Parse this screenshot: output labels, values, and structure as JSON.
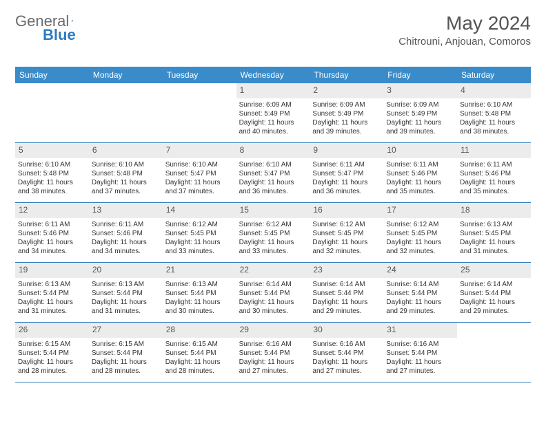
{
  "logo": {
    "text_general": "General",
    "text_blue": "Blue"
  },
  "title": "May 2024",
  "location": "Chitrouni, Anjouan, Comoros",
  "colors": {
    "header_bg": "#3a8bc9",
    "header_text": "#ffffff",
    "daynum_bg": "#ececec",
    "border": "#2f7bbf",
    "logo_gray": "#6b6b6b",
    "logo_blue": "#2f7bbf"
  },
  "weekdays": [
    "Sunday",
    "Monday",
    "Tuesday",
    "Wednesday",
    "Thursday",
    "Friday",
    "Saturday"
  ],
  "weeks": [
    [
      {
        "n": "",
        "sr": "",
        "ss": "",
        "d1": "",
        "d2": ""
      },
      {
        "n": "",
        "sr": "",
        "ss": "",
        "d1": "",
        "d2": ""
      },
      {
        "n": "",
        "sr": "",
        "ss": "",
        "d1": "",
        "d2": ""
      },
      {
        "n": "1",
        "sr": "Sunrise: 6:09 AM",
        "ss": "Sunset: 5:49 PM",
        "d1": "Daylight: 11 hours",
        "d2": "and 40 minutes."
      },
      {
        "n": "2",
        "sr": "Sunrise: 6:09 AM",
        "ss": "Sunset: 5:49 PM",
        "d1": "Daylight: 11 hours",
        "d2": "and 39 minutes."
      },
      {
        "n": "3",
        "sr": "Sunrise: 6:09 AM",
        "ss": "Sunset: 5:49 PM",
        "d1": "Daylight: 11 hours",
        "d2": "and 39 minutes."
      },
      {
        "n": "4",
        "sr": "Sunrise: 6:10 AM",
        "ss": "Sunset: 5:48 PM",
        "d1": "Daylight: 11 hours",
        "d2": "and 38 minutes."
      }
    ],
    [
      {
        "n": "5",
        "sr": "Sunrise: 6:10 AM",
        "ss": "Sunset: 5:48 PM",
        "d1": "Daylight: 11 hours",
        "d2": "and 38 minutes."
      },
      {
        "n": "6",
        "sr": "Sunrise: 6:10 AM",
        "ss": "Sunset: 5:48 PM",
        "d1": "Daylight: 11 hours",
        "d2": "and 37 minutes."
      },
      {
        "n": "7",
        "sr": "Sunrise: 6:10 AM",
        "ss": "Sunset: 5:47 PM",
        "d1": "Daylight: 11 hours",
        "d2": "and 37 minutes."
      },
      {
        "n": "8",
        "sr": "Sunrise: 6:10 AM",
        "ss": "Sunset: 5:47 PM",
        "d1": "Daylight: 11 hours",
        "d2": "and 36 minutes."
      },
      {
        "n": "9",
        "sr": "Sunrise: 6:11 AM",
        "ss": "Sunset: 5:47 PM",
        "d1": "Daylight: 11 hours",
        "d2": "and 36 minutes."
      },
      {
        "n": "10",
        "sr": "Sunrise: 6:11 AM",
        "ss": "Sunset: 5:46 PM",
        "d1": "Daylight: 11 hours",
        "d2": "and 35 minutes."
      },
      {
        "n": "11",
        "sr": "Sunrise: 6:11 AM",
        "ss": "Sunset: 5:46 PM",
        "d1": "Daylight: 11 hours",
        "d2": "and 35 minutes."
      }
    ],
    [
      {
        "n": "12",
        "sr": "Sunrise: 6:11 AM",
        "ss": "Sunset: 5:46 PM",
        "d1": "Daylight: 11 hours",
        "d2": "and 34 minutes."
      },
      {
        "n": "13",
        "sr": "Sunrise: 6:11 AM",
        "ss": "Sunset: 5:46 PM",
        "d1": "Daylight: 11 hours",
        "d2": "and 34 minutes."
      },
      {
        "n": "14",
        "sr": "Sunrise: 6:12 AM",
        "ss": "Sunset: 5:45 PM",
        "d1": "Daylight: 11 hours",
        "d2": "and 33 minutes."
      },
      {
        "n": "15",
        "sr": "Sunrise: 6:12 AM",
        "ss": "Sunset: 5:45 PM",
        "d1": "Daylight: 11 hours",
        "d2": "and 33 minutes."
      },
      {
        "n": "16",
        "sr": "Sunrise: 6:12 AM",
        "ss": "Sunset: 5:45 PM",
        "d1": "Daylight: 11 hours",
        "d2": "and 32 minutes."
      },
      {
        "n": "17",
        "sr": "Sunrise: 6:12 AM",
        "ss": "Sunset: 5:45 PM",
        "d1": "Daylight: 11 hours",
        "d2": "and 32 minutes."
      },
      {
        "n": "18",
        "sr": "Sunrise: 6:13 AM",
        "ss": "Sunset: 5:45 PM",
        "d1": "Daylight: 11 hours",
        "d2": "and 31 minutes."
      }
    ],
    [
      {
        "n": "19",
        "sr": "Sunrise: 6:13 AM",
        "ss": "Sunset: 5:44 PM",
        "d1": "Daylight: 11 hours",
        "d2": "and 31 minutes."
      },
      {
        "n": "20",
        "sr": "Sunrise: 6:13 AM",
        "ss": "Sunset: 5:44 PM",
        "d1": "Daylight: 11 hours",
        "d2": "and 31 minutes."
      },
      {
        "n": "21",
        "sr": "Sunrise: 6:13 AM",
        "ss": "Sunset: 5:44 PM",
        "d1": "Daylight: 11 hours",
        "d2": "and 30 minutes."
      },
      {
        "n": "22",
        "sr": "Sunrise: 6:14 AM",
        "ss": "Sunset: 5:44 PM",
        "d1": "Daylight: 11 hours",
        "d2": "and 30 minutes."
      },
      {
        "n": "23",
        "sr": "Sunrise: 6:14 AM",
        "ss": "Sunset: 5:44 PM",
        "d1": "Daylight: 11 hours",
        "d2": "and 29 minutes."
      },
      {
        "n": "24",
        "sr": "Sunrise: 6:14 AM",
        "ss": "Sunset: 5:44 PM",
        "d1": "Daylight: 11 hours",
        "d2": "and 29 minutes."
      },
      {
        "n": "25",
        "sr": "Sunrise: 6:14 AM",
        "ss": "Sunset: 5:44 PM",
        "d1": "Daylight: 11 hours",
        "d2": "and 29 minutes."
      }
    ],
    [
      {
        "n": "26",
        "sr": "Sunrise: 6:15 AM",
        "ss": "Sunset: 5:44 PM",
        "d1": "Daylight: 11 hours",
        "d2": "and 28 minutes."
      },
      {
        "n": "27",
        "sr": "Sunrise: 6:15 AM",
        "ss": "Sunset: 5:44 PM",
        "d1": "Daylight: 11 hours",
        "d2": "and 28 minutes."
      },
      {
        "n": "28",
        "sr": "Sunrise: 6:15 AM",
        "ss": "Sunset: 5:44 PM",
        "d1": "Daylight: 11 hours",
        "d2": "and 28 minutes."
      },
      {
        "n": "29",
        "sr": "Sunrise: 6:16 AM",
        "ss": "Sunset: 5:44 PM",
        "d1": "Daylight: 11 hours",
        "d2": "and 27 minutes."
      },
      {
        "n": "30",
        "sr": "Sunrise: 6:16 AM",
        "ss": "Sunset: 5:44 PM",
        "d1": "Daylight: 11 hours",
        "d2": "and 27 minutes."
      },
      {
        "n": "31",
        "sr": "Sunrise: 6:16 AM",
        "ss": "Sunset: 5:44 PM",
        "d1": "Daylight: 11 hours",
        "d2": "and 27 minutes."
      },
      {
        "n": "",
        "sr": "",
        "ss": "",
        "d1": "",
        "d2": ""
      }
    ]
  ]
}
